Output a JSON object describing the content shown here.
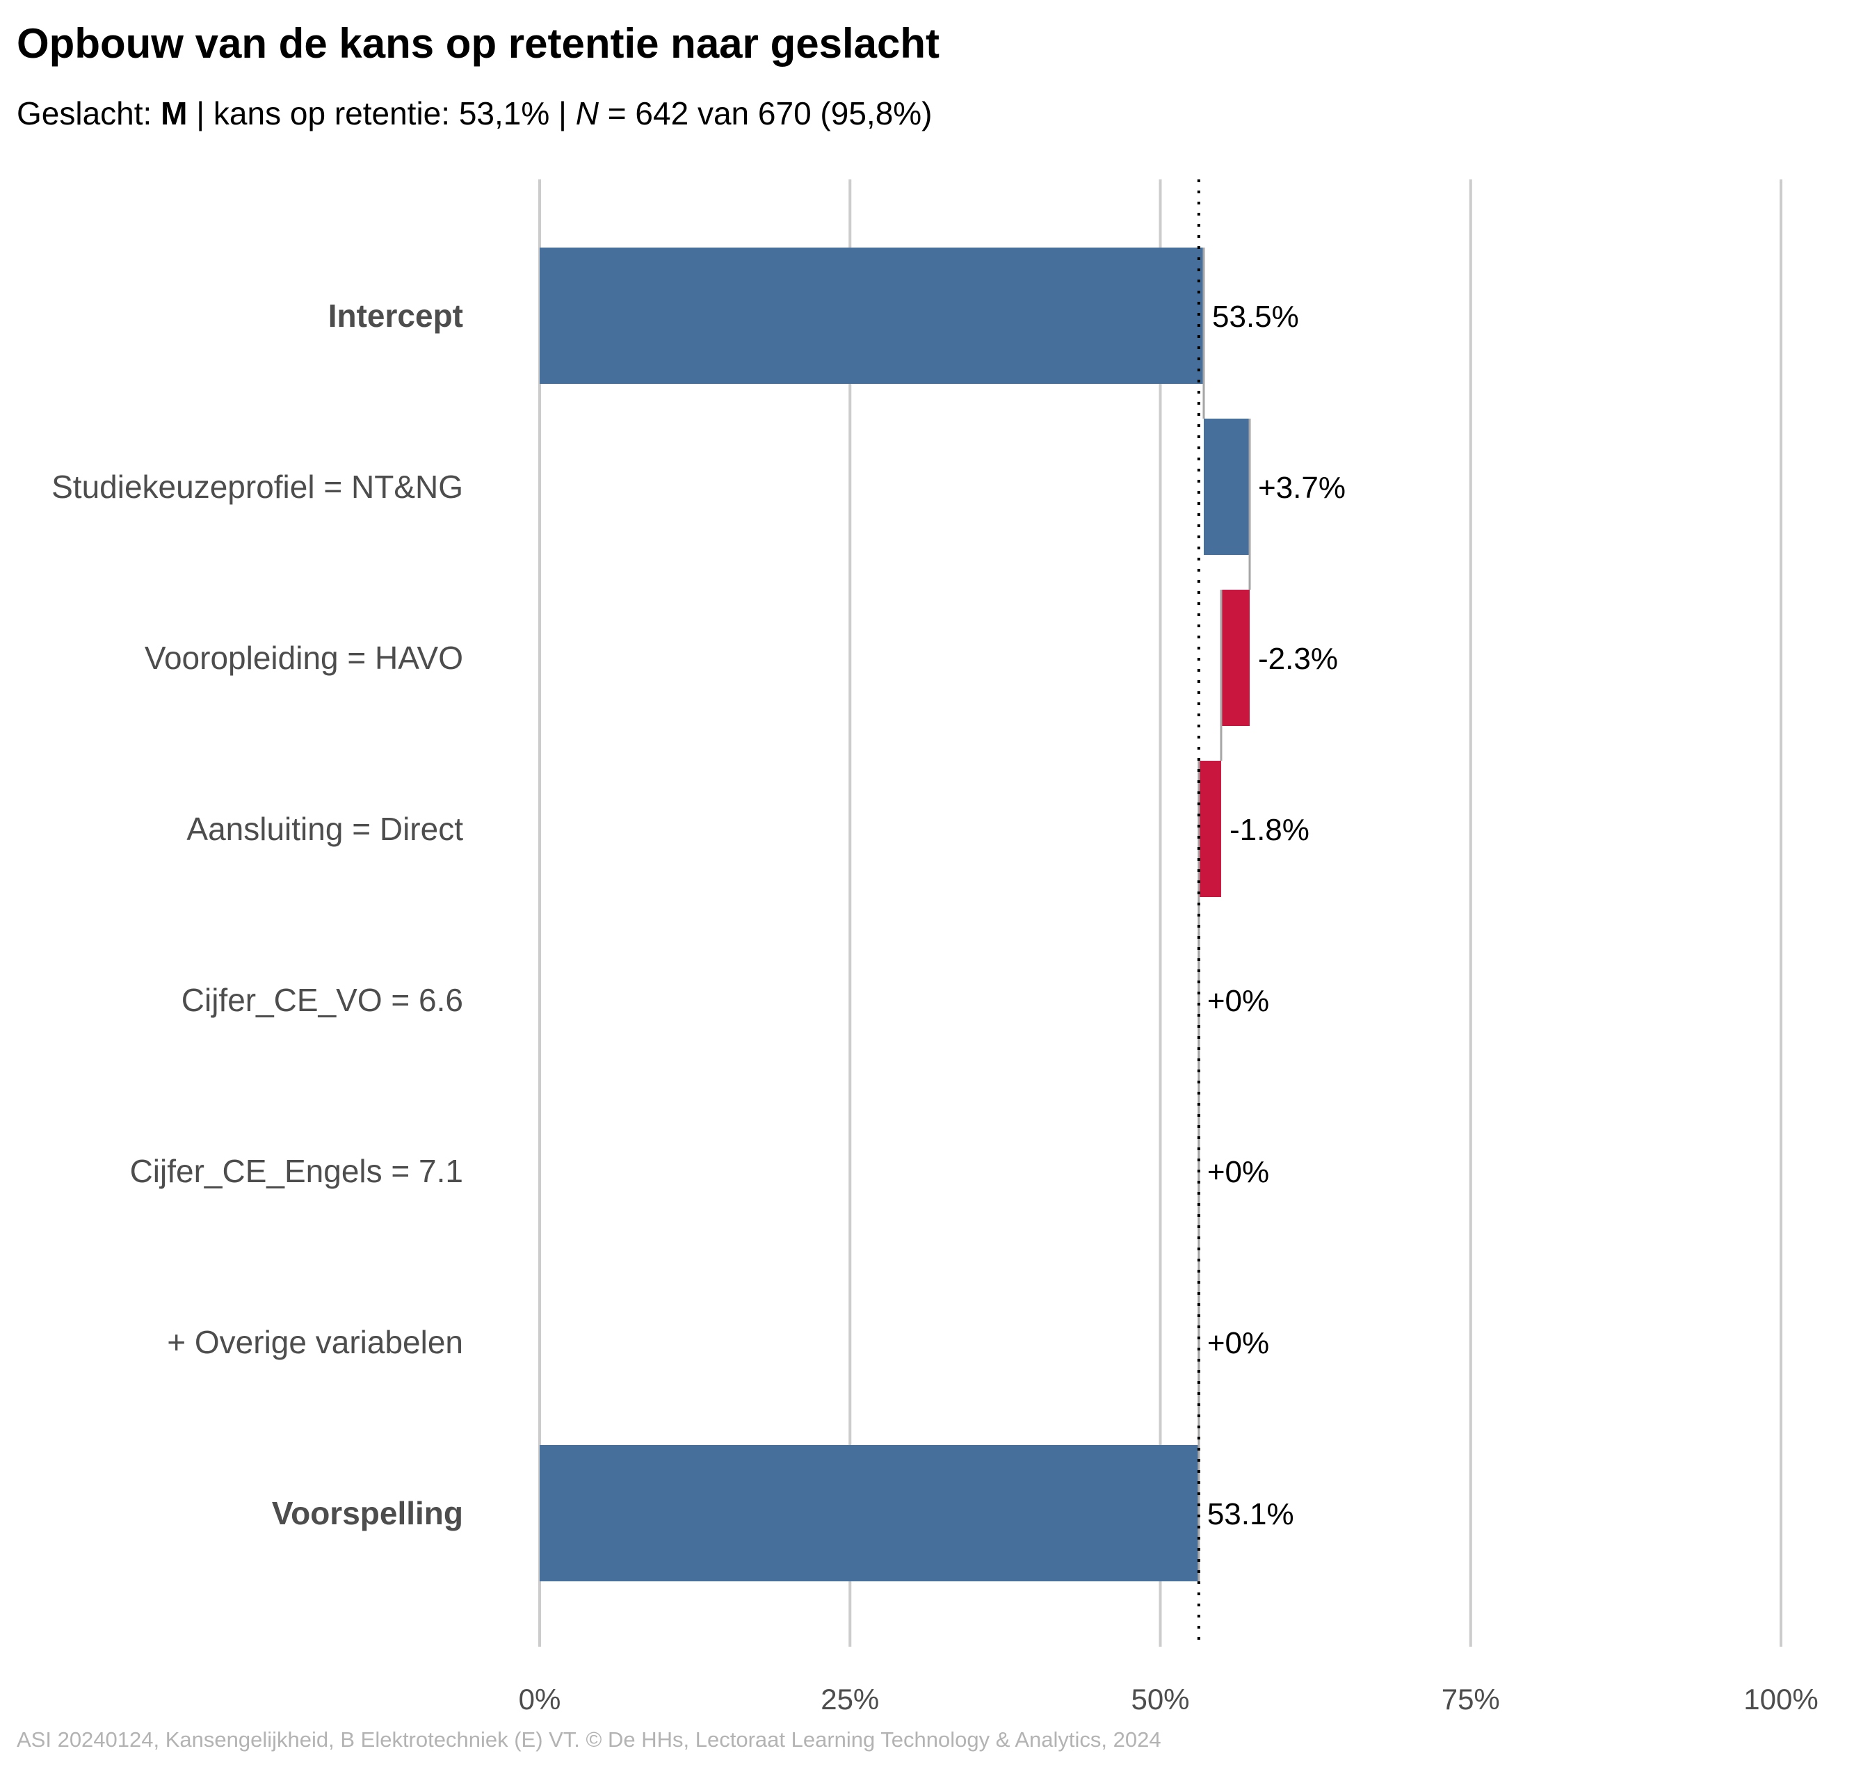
{
  "title": "Opbouw van de kans op retentie naar geslacht",
  "subtitle": {
    "prefix": "Geslacht: ",
    "group": "M",
    "middle": " | kans op retentie: 53,1% | ",
    "n_symbol": "N",
    "suffix": " = 642 van 670 (95,8%)"
  },
  "caption": "ASI 20240124, Kansengelijkheid, B Elektrotechniek (E) VT. © De HHs, Lectoraat Learning Technology & Analytics, 2024",
  "colors": {
    "positive": "#476F9B",
    "negative": "#C8163E",
    "gridline": "#cccccc",
    "connector": "#a6a6a6",
    "reference_line": "#000000"
  },
  "chart_data": {
    "type": "bar",
    "subtype": "waterfall",
    "orientation": "horizontal",
    "categories": [
      "Intercept",
      "Studiekeuzeprofiel = NT&NG",
      "Vooropleiding = HAVO",
      "Aansluiting = Direct",
      "Cijfer_CE_VO = 6.6",
      "Cijfer_CE_Engels = 7.1",
      "+ Overige variabelen",
      "Voorspelling"
    ],
    "bold_categories": [
      "Intercept",
      "Voorspelling"
    ],
    "values": [
      53.5,
      3.7,
      -2.3,
      -1.8,
      0,
      0,
      0,
      53.1
    ],
    "value_labels": [
      "53.5%",
      "+3.7%",
      "-2.3%",
      "-1.8%",
      "+0%",
      "+0%",
      "+0%",
      "53.1%"
    ],
    "kind": [
      "total",
      "delta",
      "delta",
      "delta",
      "delta",
      "delta",
      "delta",
      "total"
    ],
    "x_ticks": [
      0,
      25,
      50,
      75,
      100
    ],
    "x_tick_labels": [
      "0%",
      "25%",
      "50%",
      "75%",
      "100%"
    ],
    "xlim": [
      0,
      100
    ],
    "reference_line": 53.1,
    "grid": "vertical-major"
  }
}
